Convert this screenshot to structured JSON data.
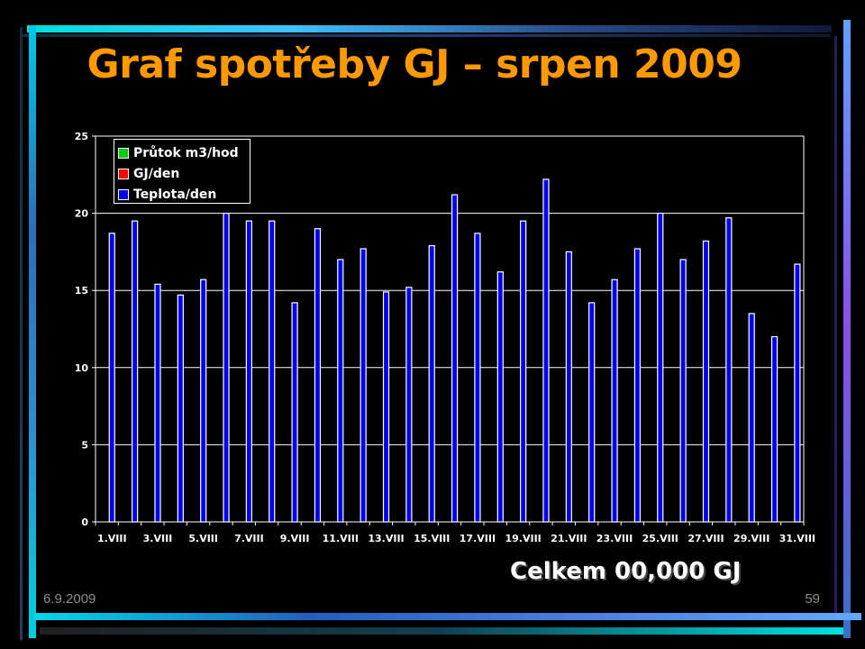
{
  "slide": {
    "title": "Graf spotřeby GJ – srpen 2009",
    "total": "Celkem 00,000 GJ",
    "date": "6.9.2009",
    "page_number": "59"
  },
  "colors": {
    "title": "#ff9900",
    "series_prutok": "#00cc00",
    "series_gj": "#ff0000",
    "series_teplota": "#0000ee"
  },
  "chart_data": {
    "type": "bar",
    "y_ticks": [
      "0",
      "5",
      "10",
      "15",
      "20",
      "25"
    ],
    "x_ticks": [
      "1.VIII",
      "3.VIII",
      "5.VIII",
      "7.VIII",
      "9.VIII",
      "11.VIII",
      "13.VIII",
      "15.VIII",
      "17.VIII",
      "19.VIII",
      "21.VIII",
      "23.VIII",
      "25.VIII",
      "27.VIII",
      "29.VIII",
      "31.VIII"
    ],
    "categories": [
      "1.VIII",
      "2.VIII",
      "3.VIII",
      "4.VIII",
      "5.VIII",
      "6.VIII",
      "7.VIII",
      "8.VIII",
      "9.VIII",
      "10.VIII",
      "11.VIII",
      "12.VIII",
      "13.VIII",
      "14.VIII",
      "15.VIII",
      "16.VIII",
      "17.VIII",
      "18.VIII",
      "19.VIII",
      "20.VIII",
      "21.VIII",
      "22.VIII",
      "23.VIII",
      "24.VIII",
      "25.VIII",
      "26.VIII",
      "27.VIII",
      "28.VIII",
      "29.VIII",
      "30.VIII",
      "31.VIII"
    ],
    "ylim": [
      0,
      25
    ],
    "grid": true,
    "legend_position": "top-left",
    "series": [
      {
        "name": "Průtok m3/hod",
        "color": "#00cc00",
        "values": [
          0,
          0,
          0,
          0,
          0,
          0,
          0,
          0,
          0,
          0,
          0,
          0,
          0,
          0,
          0,
          0,
          0,
          0,
          0,
          0,
          0,
          0,
          0,
          0,
          0,
          0,
          0,
          0,
          0,
          0,
          0
        ]
      },
      {
        "name": "GJ/den",
        "color": "#ff0000",
        "values": [
          0,
          0,
          0,
          0,
          0,
          0,
          0,
          0,
          0,
          0,
          0,
          0,
          0,
          0,
          0,
          0,
          0,
          0,
          0,
          0,
          0,
          0,
          0,
          0,
          0,
          0,
          0,
          0,
          0,
          0,
          0
        ]
      },
      {
        "name": "Teplota/den",
        "color": "#0000ee",
        "values": [
          18.7,
          19.5,
          15.4,
          14.7,
          15.7,
          20.0,
          19.5,
          19.5,
          14.2,
          19.0,
          17.0,
          17.7,
          14.9,
          15.2,
          17.9,
          21.2,
          18.7,
          16.2,
          19.5,
          22.2,
          17.5,
          14.2,
          15.7,
          17.7,
          20.0,
          17.0,
          18.2,
          19.7,
          13.5,
          12.0,
          16.7
        ]
      }
    ]
  }
}
